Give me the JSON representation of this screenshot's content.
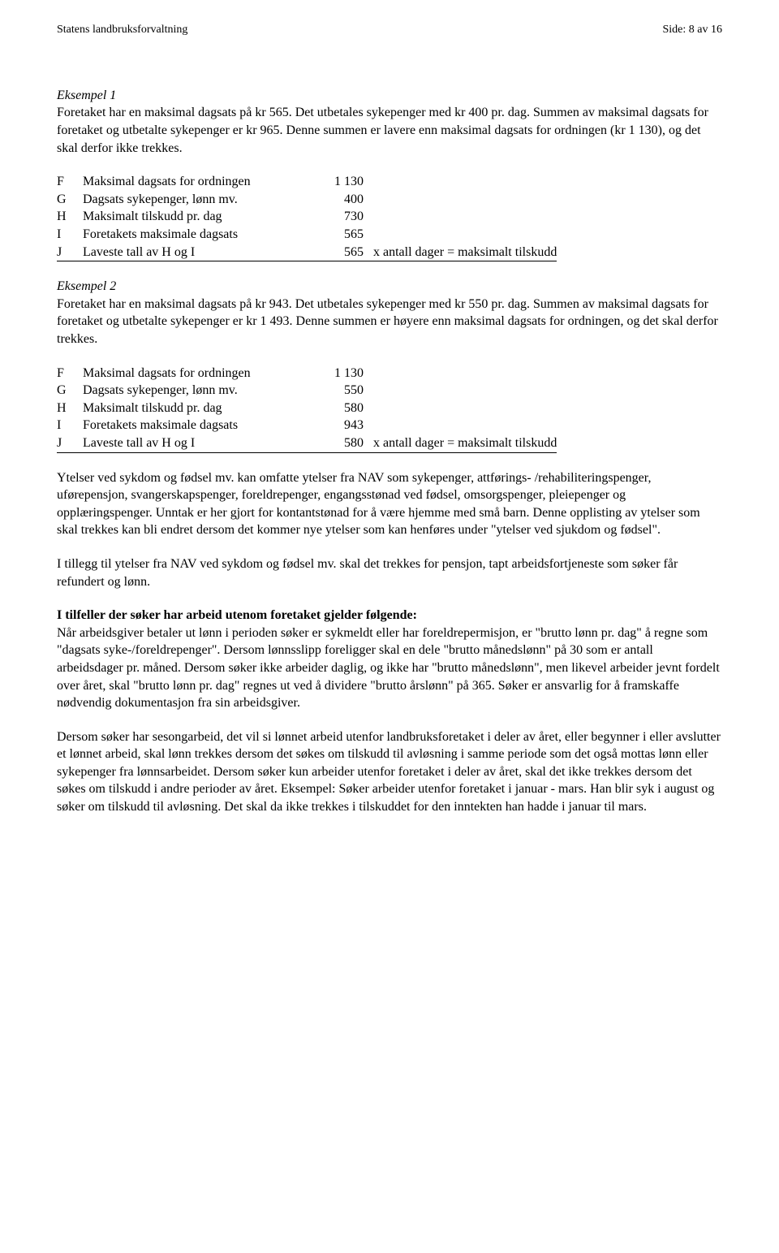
{
  "header": {
    "left": "Statens landbruksforvaltning",
    "right": "Side: 8 av 16"
  },
  "ex1": {
    "title": "Eksempel 1",
    "intro": "Foretaket har en maksimal dagsats på kr 565. Det utbetales sykepenger med kr 400 pr. dag. Summen av maksimal dagsats for foretaket og utbetalte sykepenger er kr 965. Denne summen er lavere enn maksimal dagsats for ordningen (kr 1 130), og det skal derfor ikke trekkes.",
    "rows": {
      "F": {
        "letter": "F",
        "label": "Maksimal dagsats for ordningen",
        "value": "1 130"
      },
      "G": {
        "letter": "G",
        "label": "Dagsats sykepenger, lønn mv.",
        "value": "400"
      },
      "H": {
        "letter": "H",
        "label": "Maksimalt tilskudd pr. dag",
        "value": "730"
      },
      "I": {
        "letter": "I",
        "label": "Foretakets maksimale dagsats",
        "value": "565"
      },
      "J": {
        "letter": "J",
        "label": "Laveste tall av H og I",
        "value": "565",
        "suffix": "x  antall dager  =  maksimalt tilskudd"
      }
    }
  },
  "ex2": {
    "title": "Eksempel 2",
    "intro": "Foretaket har en maksimal dagsats på kr 943. Det utbetales sykepenger med kr 550 pr. dag. Summen av maksimal dagsats for foretaket og utbetalte sykepenger er kr 1 493. Denne summen er høyere enn maksimal dagsats for ordningen, og det skal derfor trekkes.",
    "rows": {
      "F": {
        "letter": "F",
        "label": "Maksimal dagsats for ordningen",
        "value": "1 130"
      },
      "G": {
        "letter": "G",
        "label": "Dagsats sykepenger, lønn mv.",
        "value": "550"
      },
      "H": {
        "letter": "H",
        "label": "Maksimalt tilskudd pr. dag",
        "value": "580"
      },
      "I": {
        "letter": "I",
        "label": "Foretakets maksimale dagsats",
        "value": "943"
      },
      "J": {
        "letter": "J",
        "label": "Laveste tall av H og I",
        "value": "580",
        "suffix": "x  antall dager  =  maksimalt tilskudd"
      }
    }
  },
  "para3": "Ytelser ved sykdom og fødsel mv. kan omfatte ytelser fra NAV som sykepenger, attførings- /rehabiliteringspenger, uførepensjon, svangerskapspenger, foreldrepenger, engangsstønad ved fødsel, omsorgspenger, pleiepenger og opplæringspenger. Unntak er her gjort for kontantstønad for å være hjemme med små barn. Denne opplisting av ytelser som skal trekkes kan bli endret dersom det kommer nye ytelser som kan henføres under \"ytelser ved sjukdom og fødsel\".",
  "para4": "I tillegg til ytelser fra NAV ved sykdom og fødsel mv. skal det trekkes for pensjon, tapt arbeidsfortjeneste som søker får refundert og lønn.",
  "para5": {
    "boldLead": "I tilfeller der søker har arbeid utenom foretaket gjelder følgende:",
    "body": "Når arbeidsgiver betaler ut lønn i perioden søker er sykmeldt eller har foreldrepermisjon, er \"brutto lønn pr. dag\" å regne som \"dagsats syke-/foreldrepenger\". Dersom lønnsslipp foreligger skal en dele \"brutto månedslønn\" på 30 som er antall arbeidsdager pr. måned. Dersom søker ikke arbeider daglig, og ikke har \"brutto månedslønn\", men likevel arbeider jevnt fordelt over året, skal \"brutto lønn pr. dag\" regnes ut ved å dividere \"brutto årslønn\" på 365. Søker er ansvarlig for å framskaffe nødvendig dokumentasjon fra sin arbeidsgiver."
  },
  "para6": "Dersom søker har sesongarbeid, det vil si lønnet arbeid utenfor landbruksforetaket i deler av året, eller begynner i eller avslutter et lønnet arbeid, skal lønn trekkes dersom det søkes om tilskudd til avløsning i samme periode som det også mottas lønn eller sykepenger fra lønnsarbeidet. Dersom søker kun arbeider utenfor foretaket i deler av året, skal det ikke trekkes dersom det søkes om tilskudd i andre perioder av året. Eksempel: Søker arbeider utenfor foretaket i januar - mars. Han blir syk i august og søker om tilskudd til avløsning. Det skal da ikke trekkes i tilskuddet for den inntekten han hadde i januar til mars."
}
